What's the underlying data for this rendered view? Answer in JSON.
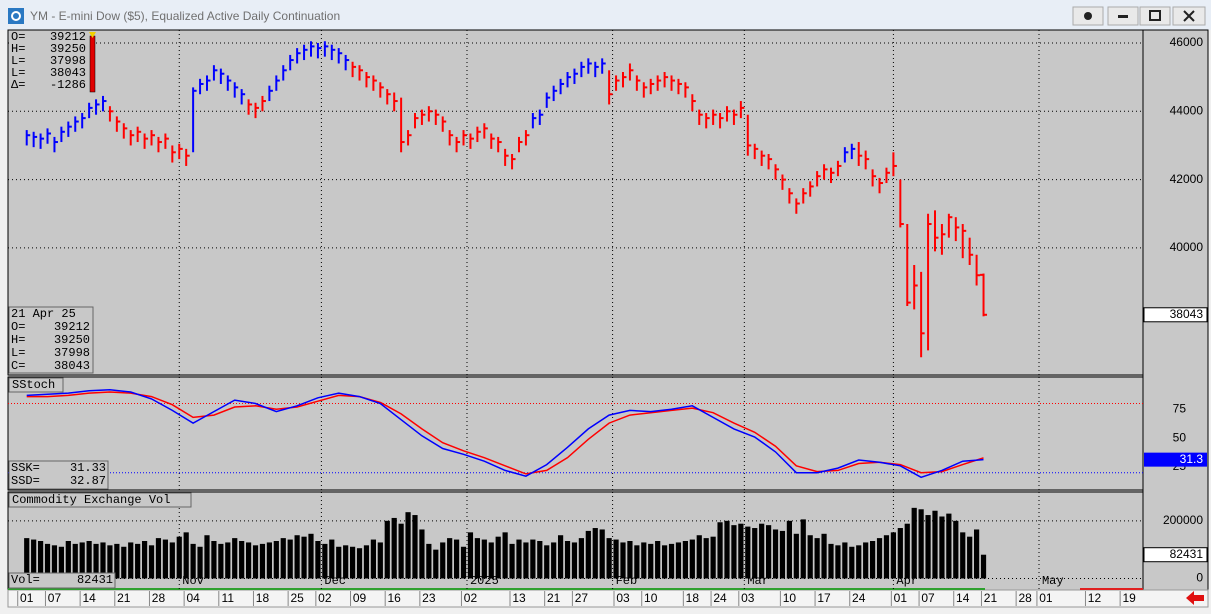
{
  "window": {
    "title": "YM - E-mini Dow ($5), Equalized Active Daily Continuation"
  },
  "chart_data": [
    {
      "type": "ohlc",
      "high": [
        43450,
        43400,
        43350,
        43500,
        43250,
        43550,
        43700,
        43850,
        43950,
        44250,
        44350,
        44450,
        44150,
        43850,
        43650,
        43450,
        43550,
        43350,
        43450,
        43250,
        43350,
        43000,
        43050,
        42900,
        44700,
        44950,
        45050,
        45350,
        45250,
        45050,
        44850,
        44650,
        44350,
        44250,
        44450,
        44750,
        45050,
        45350,
        45650,
        45850,
        45950,
        46050,
        46000,
        46050,
        45950,
        45850,
        45650,
        45450,
        45350,
        45150,
        45050,
        44850,
        44650,
        44550,
        44400,
        43450,
        43950,
        44050,
        44150,
        44050,
        43850,
        43450,
        43250,
        43450,
        43350,
        43550,
        43650,
        43350,
        43250,
        42900,
        42750,
        43250,
        43450,
        43950,
        44050,
        44550,
        44750,
        44950,
        45150,
        45250,
        45450,
        45550,
        45450,
        45550,
        45200,
        45050,
        45150,
        45400,
        45050,
        44850,
        44950,
        45050,
        45150,
        45050,
        44950,
        44850,
        44500,
        44050,
        43950,
        44050,
        43950,
        44150,
        44050,
        44300,
        43900,
        43050,
        42850,
        42750,
        42450,
        42150,
        41750,
        41450,
        41750,
        41950,
        42250,
        42450,
        42350,
        42550,
        42950,
        43050,
        43100,
        42850,
        42300,
        42050,
        42350,
        42800,
        42000,
        40700,
        39500,
        39300,
        41000,
        41100,
        40700,
        41000,
        40900,
        40700,
        40300,
        39800,
        39250
      ],
      "low": [
        43000,
        42950,
        42900,
        43050,
        42800,
        43100,
        43250,
        43400,
        43500,
        43800,
        43900,
        44000,
        43700,
        43400,
        43200,
        43000,
        43100,
        42900,
        43000,
        42800,
        42900,
        42500,
        42600,
        42400,
        42800,
        44500,
        44600,
        44900,
        44800,
        44600,
        44400,
        44200,
        43900,
        43800,
        44000,
        44300,
        44600,
        44900,
        45200,
        45400,
        45500,
        45600,
        45550,
        45600,
        45500,
        45400,
        45200,
        45000,
        44900,
        44700,
        44600,
        44400,
        44200,
        44000,
        42800,
        43000,
        43500,
        43600,
        43700,
        43600,
        43400,
        43000,
        42800,
        43000,
        42900,
        43100,
        43200,
        42900,
        42800,
        42400,
        42300,
        42800,
        43000,
        43500,
        43600,
        44100,
        44300,
        44500,
        44700,
        44800,
        45000,
        45100,
        45000,
        45100,
        44200,
        44600,
        44700,
        44900,
        44600,
        44400,
        44500,
        44600,
        44700,
        44600,
        44500,
        44400,
        44000,
        43600,
        43500,
        43600,
        43500,
        43700,
        43600,
        43800,
        42700,
        42600,
        42400,
        42300,
        42000,
        41700,
        41300,
        41000,
        41300,
        41500,
        41800,
        42000,
        41900,
        42100,
        42500,
        42600,
        42400,
        42300,
        41800,
        41600,
        41900,
        42100,
        40600,
        38300,
        38200,
        36800,
        37000,
        39900,
        39800,
        40300,
        40200,
        39700,
        39500,
        38900,
        37998
      ],
      "close": [
        43300,
        43250,
        43200,
        43350,
        43100,
        43400,
        43550,
        43700,
        43800,
        44100,
        44200,
        44300,
        44000,
        43700,
        43500,
        43300,
        43400,
        43200,
        43300,
        43100,
        43200,
        42800,
        42900,
        42700,
        44600,
        44800,
        44900,
        45200,
        45100,
        44900,
        44700,
        44500,
        44200,
        44100,
        44300,
        44600,
        44900,
        45200,
        45500,
        45700,
        45800,
        45900,
        45850,
        45900,
        45800,
        45700,
        45500,
        45300,
        45200,
        45000,
        44900,
        44700,
        44500,
        44300,
        43100,
        43300,
        43800,
        43900,
        44000,
        43900,
        43700,
        43300,
        43100,
        43300,
        43200,
        43400,
        43500,
        43200,
        43100,
        42700,
        42600,
        43100,
        43300,
        43800,
        43900,
        44400,
        44600,
        44800,
        45000,
        45100,
        45300,
        45400,
        45300,
        45400,
        44500,
        44900,
        45000,
        45200,
        44900,
        44700,
        44800,
        44900,
        45000,
        44900,
        44800,
        44700,
        44300,
        43900,
        43800,
        43900,
        43800,
        44000,
        43900,
        44100,
        43000,
        42900,
        42700,
        42600,
        42300,
        42000,
        41600,
        41300,
        41600,
        41800,
        42100,
        42300,
        42200,
        42400,
        42800,
        42900,
        42700,
        42600,
        42100,
        41900,
        42200,
        42400,
        40700,
        38400,
        38900,
        37500,
        40700,
        40300,
        40400,
        40900,
        40600,
        40500,
        39800,
        39200,
        38043
      ],
      "up": [
        1,
        1,
        1,
        1,
        1,
        1,
        1,
        1,
        1,
        1,
        1,
        1,
        0,
        0,
        0,
        0,
        0,
        0,
        0,
        0,
        0,
        0,
        0,
        0,
        1,
        1,
        1,
        1,
        1,
        1,
        1,
        1,
        0,
        0,
        0,
        1,
        1,
        1,
        1,
        1,
        1,
        1,
        1,
        1,
        1,
        1,
        1,
        0,
        0,
        0,
        0,
        0,
        0,
        0,
        0,
        0,
        0,
        0,
        0,
        0,
        0,
        0,
        0,
        0,
        0,
        0,
        0,
        0,
        0,
        0,
        0,
        0,
        0,
        1,
        1,
        1,
        1,
        1,
        1,
        1,
        1,
        1,
        1,
        1,
        0,
        0,
        0,
        0,
        0,
        0,
        0,
        0,
        0,
        0,
        0,
        0,
        0,
        0,
        0,
        0,
        0,
        0,
        0,
        0,
        0,
        0,
        0,
        0,
        0,
        0,
        0,
        0,
        0,
        0,
        0,
        0,
        0,
        0,
        1,
        1,
        0,
        0,
        0,
        0,
        0,
        0,
        0,
        0,
        0,
        0,
        0,
        0,
        0,
        0,
        0,
        0,
        0,
        0,
        0
      ],
      "up_color": "#0000ff",
      "down_color": "#ff0000",
      "ylim": [
        36280,
        46380
      ],
      "yticks": [
        40000,
        42000,
        44000,
        46000
      ],
      "grid": true,
      "open": 39212,
      "change": -1286,
      "info_labels": [
        "O=",
        "H=",
        "L=",
        "L=",
        "Δ="
      ],
      "date": "21 Apr 25",
      "date_labels": [
        "O=",
        "H=",
        "L=",
        "C="
      ]
    },
    {
      "type": "line",
      "title": "SStoch",
      "x": [
        0,
        3,
        6,
        9,
        12,
        15,
        18,
        21,
        24,
        27,
        30,
        33,
        36,
        39,
        42,
        45,
        48,
        51,
        54,
        57,
        60,
        63,
        66,
        69,
        72,
        75,
        78,
        81,
        84,
        87,
        90,
        93,
        96,
        99,
        102,
        105,
        108,
        111,
        114,
        117,
        120,
        123,
        126,
        129,
        132,
        135,
        138
      ],
      "series": [
        {
          "name": "SSK=",
          "color": "#0000ff",
          "values": [
            87,
            88,
            89,
            91,
            92,
            90,
            84,
            74,
            63,
            73,
            83,
            80,
            73,
            78,
            85,
            89,
            86,
            80,
            66,
            52,
            41,
            36,
            30,
            22,
            17,
            27,
            42,
            58,
            70,
            74,
            73,
            75,
            78,
            68,
            58,
            51,
            38,
            20,
            20,
            24,
            31,
            29,
            26,
            16,
            22,
            30,
            31.33
          ]
        },
        {
          "name": "SSD=",
          "color": "#ff0000",
          "values": [
            86,
            86,
            87,
            89,
            90,
            89,
            86,
            79,
            68,
            70,
            77,
            78,
            75,
            77,
            82,
            87,
            86,
            81,
            71,
            58,
            46,
            39,
            33,
            26,
            19,
            22,
            33,
            49,
            63,
            70,
            72,
            74,
            76,
            72,
            63,
            55,
            43,
            26,
            21,
            22,
            28,
            29,
            27,
            20,
            21,
            27,
            32.87
          ]
        }
      ],
      "ylim": [
        5,
        103
      ],
      "yticks": [
        25,
        50,
        75
      ],
      "ref_lines": [
        {
          "value": 80,
          "color": "#ff0000"
        },
        {
          "value": 20,
          "color": "#0000ff"
        }
      ],
      "last_label": {
        "value": 31.33,
        "label": "31.3"
      }
    },
    {
      "type": "bar",
      "title": "Commodity Exchange Vol",
      "last_label": "Vol=",
      "color": "#000000",
      "values": [
        140000,
        135000,
        130000,
        120000,
        115000,
        110000,
        130000,
        120000,
        125000,
        130000,
        120000,
        125000,
        115000,
        120000,
        110000,
        125000,
        120000,
        130000,
        115000,
        140000,
        135000,
        125000,
        145000,
        160000,
        120000,
        110000,
        150000,
        130000,
        120000,
        125000,
        140000,
        130000,
        125000,
        115000,
        120000,
        125000,
        130000,
        140000,
        135000,
        150000,
        145000,
        155000,
        130000,
        120000,
        135000,
        110000,
        115000,
        110000,
        105000,
        115000,
        135000,
        125000,
        200000,
        210000,
        190000,
        230000,
        220000,
        170000,
        120000,
        100000,
        125000,
        140000,
        135000,
        110000,
        160000,
        140000,
        135000,
        125000,
        145000,
        160000,
        120000,
        135000,
        125000,
        135000,
        130000,
        115000,
        125000,
        150000,
        130000,
        125000,
        140000,
        165000,
        175000,
        170000,
        140000,
        135000,
        125000,
        130000,
        115000,
        125000,
        120000,
        130000,
        115000,
        120000,
        125000,
        130000,
        135000,
        150000,
        140000,
        145000,
        195000,
        200000,
        185000,
        190000,
        180000,
        175000,
        190000,
        185000,
        170000,
        165000,
        200000,
        155000,
        205000,
        150000,
        140000,
        155000,
        120000,
        115000,
        125000,
        110000,
        115000,
        125000,
        130000,
        140000,
        150000,
        160000,
        175000,
        190000,
        245000,
        240000,
        220000,
        235000,
        215000,
        225000,
        200000,
        160000,
        145000,
        170000,
        82431
      ],
      "ylim": [
        -40000,
        300000
      ],
      "yticks": [
        0,
        200000
      ],
      "xlim": [
        -2.7,
        161
      ],
      "xticks": [
        {
          "value": 0,
          "label": "01"
        },
        {
          "value": 4,
          "label": "07"
        },
        {
          "value": 9,
          "label": "14"
        },
        {
          "value": 14,
          "label": "21"
        },
        {
          "value": 19,
          "label": "28"
        },
        {
          "value": 24,
          "label": "04"
        },
        {
          "value": 29,
          "label": "11"
        },
        {
          "value": 34,
          "label": "18"
        },
        {
          "value": 39,
          "label": "25"
        },
        {
          "value": 43,
          "label": "02"
        },
        {
          "value": 48,
          "label": "09"
        },
        {
          "value": 53,
          "label": "16"
        },
        {
          "value": 58,
          "label": "23"
        },
        {
          "value": 64,
          "label": "02"
        },
        {
          "value": 71,
          "label": "13"
        },
        {
          "value": 76,
          "label": "21"
        },
        {
          "value": 80,
          "label": "27"
        },
        {
          "value": 86,
          "label": "03"
        },
        {
          "value": 90,
          "label": "10"
        },
        {
          "value": 96,
          "label": "18"
        },
        {
          "value": 100,
          "label": "24"
        },
        {
          "value": 104,
          "label": "03"
        },
        {
          "value": 110,
          "label": "10"
        },
        {
          "value": 115,
          "label": "17"
        },
        {
          "value": 120,
          "label": "24"
        },
        {
          "value": 126,
          "label": "01"
        },
        {
          "value": 130,
          "label": "07"
        },
        {
          "value": 135,
          "label": "14"
        },
        {
          "value": 139,
          "label": "21"
        },
        {
          "value": 144,
          "label": "28"
        },
        {
          "value": 147,
          "label": "01"
        },
        {
          "value": 154,
          "label": "12"
        },
        {
          "value": 159,
          "label": "19"
        }
      ],
      "months": [
        {
          "value": 22,
          "label": "Nov"
        },
        {
          "value": 42.5,
          "label": "Dec"
        },
        {
          "value": 63.5,
          "label": "2025"
        },
        {
          "value": 84.5,
          "label": "Feb"
        },
        {
          "value": 103.5,
          "label": "Mar"
        },
        {
          "value": 125,
          "label": "Apr"
        },
        {
          "value": 146,
          "label": "May"
        }
      ]
    }
  ]
}
